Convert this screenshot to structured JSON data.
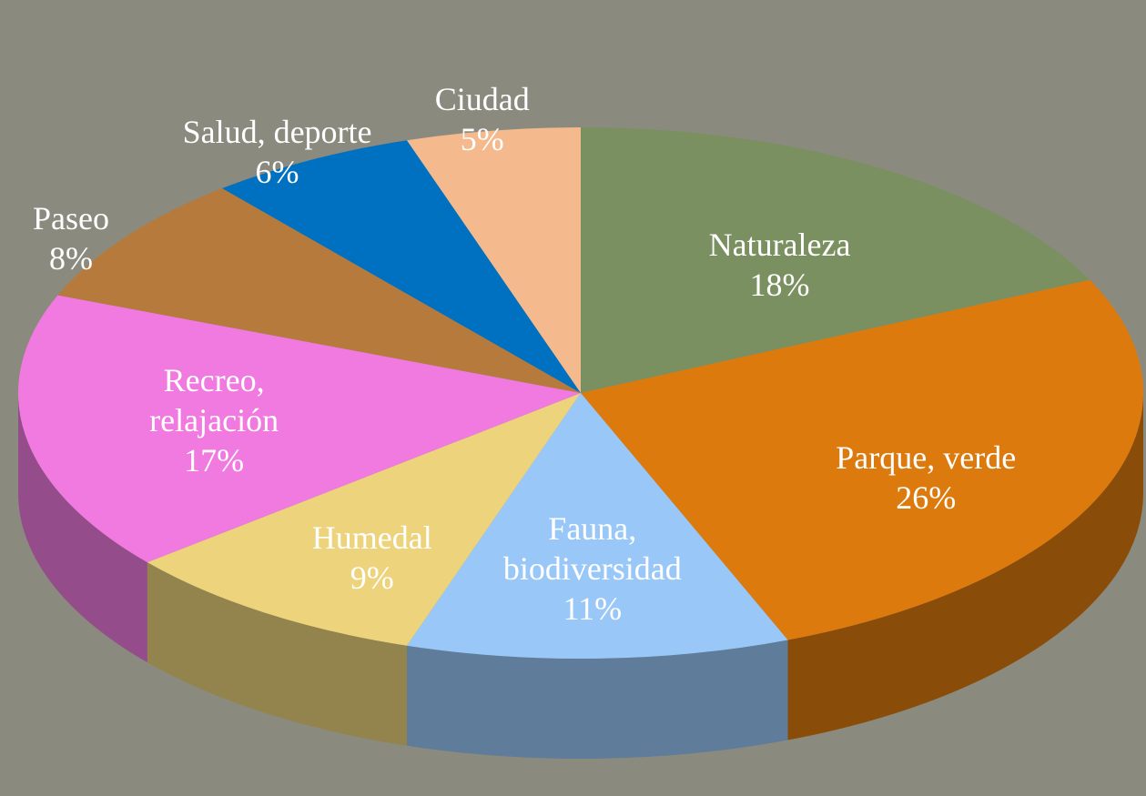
{
  "chart_data": {
    "type": "pie3d",
    "categories": [
      "Naturaleza",
      "Parque, verde",
      "Fauna, biodiversidad",
      "Humedal",
      "Recreo, relajación",
      "Paseo",
      "Salud, deporte",
      "Ciudad"
    ],
    "values": [
      18,
      26,
      11,
      9,
      17,
      8,
      6,
      5
    ],
    "value_labels": [
      "18%",
      "26%",
      "11%",
      "9%",
      "17%",
      "8%",
      "6%",
      "5%"
    ],
    "colors": [
      "#7b9060",
      "#dd7a0e",
      "#99c8f8",
      "#edd37b",
      "#f07ae0",
      "#b57a3c",
      "#0070c0",
      "#f4b98c"
    ]
  }
}
